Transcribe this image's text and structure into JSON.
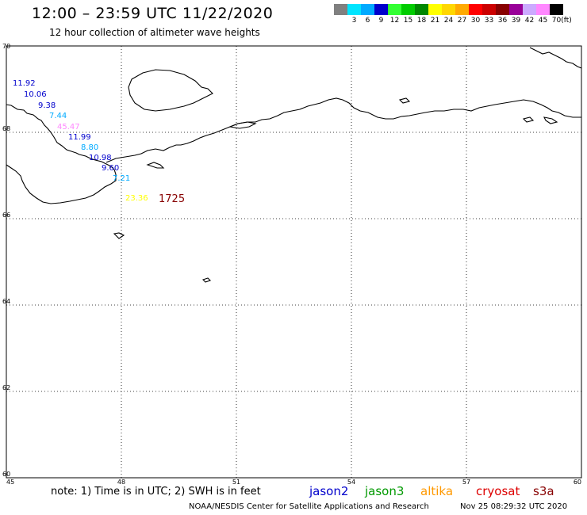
{
  "header": {
    "title": "12:00  –  23:59  UTC  11/22/2020",
    "subtitle": "12 hour collection of altimeter wave heights"
  },
  "color_scale": {
    "unit": "(ft)",
    "bins": [
      {
        "label": "",
        "color": "#808080"
      },
      {
        "label": "3",
        "color": "#00e5ff"
      },
      {
        "label": "6",
        "color": "#00aaff"
      },
      {
        "label": "9",
        "color": "#0000cc"
      },
      {
        "label": "12",
        "color": "#33ff33"
      },
      {
        "label": "15",
        "color": "#00cc00"
      },
      {
        "label": "18",
        "color": "#008800"
      },
      {
        "label": "21",
        "color": "#ffff00"
      },
      {
        "label": "24",
        "color": "#ffd700"
      },
      {
        "label": "27",
        "color": "#ffaa00"
      },
      {
        "label": "30",
        "color": "#ff0000"
      },
      {
        "label": "33",
        "color": "#cc0000"
      },
      {
        "label": "36",
        "color": "#880000"
      },
      {
        "label": "39",
        "color": "#990099"
      },
      {
        "label": "42",
        "color": "#ccaaff"
      },
      {
        "label": "45",
        "color": "#ff88ff"
      },
      {
        "label": "70",
        "color": "#000000"
      }
    ]
  },
  "map": {
    "lat_labels": [
      "70",
      "68",
      "66",
      "64",
      "62",
      "60"
    ],
    "lon_labels": [
      "45",
      "48",
      "51",
      "54",
      "57",
      "60"
    ],
    "lat_range": [
      60,
      70
    ],
    "lon_range": [
      45,
      60
    ],
    "gridlines": "dotted"
  },
  "observations": [
    {
      "text": "11.92",
      "color": "#0000cc"
    },
    {
      "text": "10.06",
      "color": "#0000cc"
    },
    {
      "text": "9.38",
      "color": "#0000cc"
    },
    {
      "text": "7.44",
      "color": "#00aaff"
    },
    {
      "text": "45.47",
      "color": "#ff88ff"
    },
    {
      "text": "11.99",
      "color": "#0000cc"
    },
    {
      "text": "8.80",
      "color": "#00aaff"
    },
    {
      "text": "10.98",
      "color": "#0000cc"
    },
    {
      "text": "9.60",
      "color": "#0000cc"
    },
    {
      "text": "7.21",
      "color": "#00aaff"
    },
    {
      "text": "23.36",
      "color": "#ffff00"
    },
    {
      "text": "1725",
      "color": "#880000"
    }
  ],
  "footer": {
    "note": "note:  1) Time is in UTC;  2) SWH is in feet",
    "satellites": [
      {
        "name": "jason2",
        "color": "#0000cc"
      },
      {
        "name": "jason3",
        "color": "#009900"
      },
      {
        "name": "altika",
        "color": "#ff9900"
      },
      {
        "name": "cryosat",
        "color": "#dd0000"
      },
      {
        "name": "s3a",
        "color": "#880000"
      }
    ],
    "credit": "NOAA/NESDIS Center for Satellite Applications and Research",
    "timestamp": "Nov 25 08:29:32 UTC 2020"
  }
}
